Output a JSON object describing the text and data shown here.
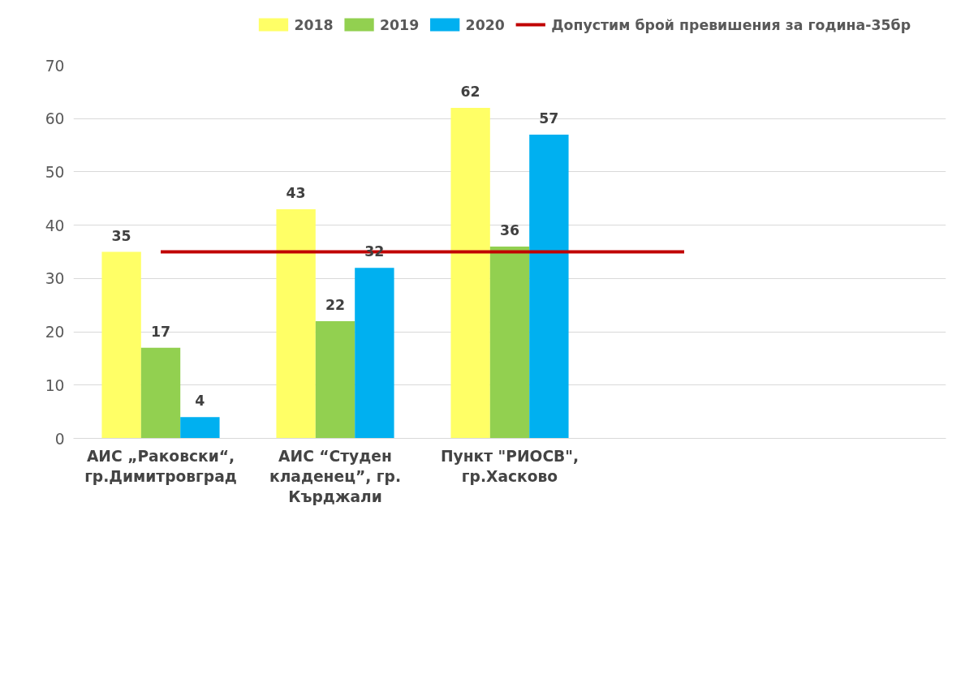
{
  "chart_data": {
    "type": "bar",
    "categories": [
      "АИС „Раковски“, гр.Димитровград",
      "АИС “Студен кладенец”, гр. Кърджали",
      "Пункт \"РИОСВ\", гр.Хасково",
      null,
      null
    ],
    "series": [
      {
        "name": "2018",
        "color": "#ffff66",
        "values": [
          35,
          43,
          62,
          null,
          null
        ],
        "value_labels": [
          "35",
          "43",
          "62",
          null,
          null
        ]
      },
      {
        "name": "2019",
        "color": "#92d050",
        "values": [
          17,
          22,
          36,
          null,
          null
        ],
        "value_labels": [
          "17",
          "22",
          "36",
          null,
          null
        ]
      },
      {
        "name": "2020",
        "color": "#00b0f0",
        "values": [
          4,
          32,
          57,
          null,
          null
        ],
        "value_labels": [
          "4",
          "32",
          "57",
          null,
          null
        ]
      },
      {
        "name": "Допустим брой превишения за година-35бр",
        "type": "line",
        "color": "#c00000",
        "values": [
          35,
          35,
          35,
          35,
          null
        ]
      }
    ],
    "ylim": [
      0,
      70
    ],
    "yticks": [
      0,
      10,
      20,
      30,
      40,
      50,
      60,
      70
    ],
    "grid": "y",
    "legend": "top"
  }
}
